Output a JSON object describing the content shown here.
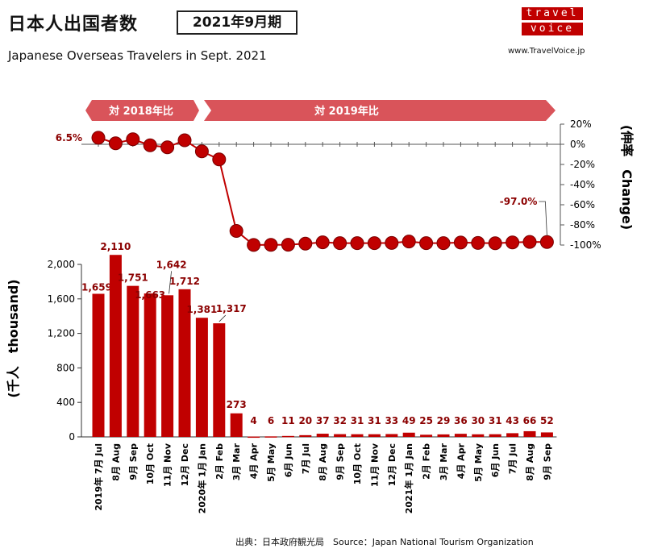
{
  "header": {
    "title_jp": "日本人出国者数",
    "period": "2021年9月期",
    "subtitle_en": "Japanese Overseas Travelers in Sept. 2021"
  },
  "logo": {
    "line1": "travel",
    "line2": "voice",
    "url": "www.TravelVoice.jp"
  },
  "source": "出典：日本政府観光局　Source：Japan National Tourism Organization",
  "colors": {
    "bar": "#c00000",
    "line": "#c00000",
    "banner": "#d9545a",
    "label": "#8b0000"
  },
  "chart_data": [
    {
      "type": "bar",
      "ylabel": "(千人　thousand)",
      "ylim": [
        0,
        2000
      ],
      "yticks": [
        0,
        400,
        800,
        1200,
        1600,
        2000
      ],
      "ytick_labels": [
        "0",
        "400",
        "800",
        "1,200",
        "1,600",
        "2,000"
      ],
      "categories": [
        "2019年 7月 Jul",
        "8月 Aug",
        "9月 Sep",
        "10月 Oct",
        "11月 Nov",
        "12月 Dec",
        "2020年 1月 Jan",
        "2月 Feb",
        "3月 Mar",
        "4月 Apr",
        "5月 May",
        "6月 Jun",
        "7月 Jul",
        "8月 Aug",
        "9月 Sep",
        "10月 Oct",
        "11月 Nov",
        "12月 Dec",
        "2021年 1月 Jan",
        "2月 Feb",
        "3月 Mar",
        "4月 Apr",
        "5月 May",
        "6月 Jun",
        "7月 Jul",
        "8月 Aug",
        "9月 Sep"
      ],
      "values": [
        1659,
        2110,
        1751,
        1663,
        1642,
        1712,
        1381,
        1317,
        273,
        4,
        6,
        11,
        20,
        37,
        32,
        31,
        31,
        33,
        49,
        25,
        29,
        36,
        30,
        31,
        43,
        66,
        52
      ],
      "value_labels": [
        "1,659",
        "2,110",
        "1,751",
        "1,663",
        "1,642",
        "1,712",
        "1,381",
        "1,317",
        "273",
        "4",
        "6",
        "11",
        "20",
        "37",
        "32",
        "31",
        "31",
        "33",
        "49",
        "25",
        "29",
        "36",
        "30",
        "31",
        "43",
        "66",
        "52"
      ]
    },
    {
      "type": "line",
      "ylabel": "(伸率　Change)",
      "ylim": [
        -100,
        20
      ],
      "yticks": [
        20,
        0,
        -20,
        -40,
        -60,
        -80,
        -100
      ],
      "ytick_labels": [
        "20%",
        "0%",
        "-20%",
        "-40%",
        "-60%",
        "-80%",
        "-100%"
      ],
      "banners": [
        "対 2018年比",
        "対 2019年比"
      ],
      "values": [
        6.5,
        1,
        5,
        -1,
        -3,
        4,
        -7,
        -15,
        -86,
        -99.9,
        -99.8,
        -99.7,
        -98.6,
        -97.3,
        -98.1,
        -98.1,
        -98.1,
        -97.9,
        -96.5,
        -98.1,
        -98.1,
        -97.5,
        -97.9,
        -98.2,
        -97.4,
        -96.9,
        -97.0
      ],
      "annotations": [
        {
          "text": "6.5%",
          "index": 0
        },
        {
          "text": "-97.0%",
          "index": 26
        }
      ]
    }
  ]
}
